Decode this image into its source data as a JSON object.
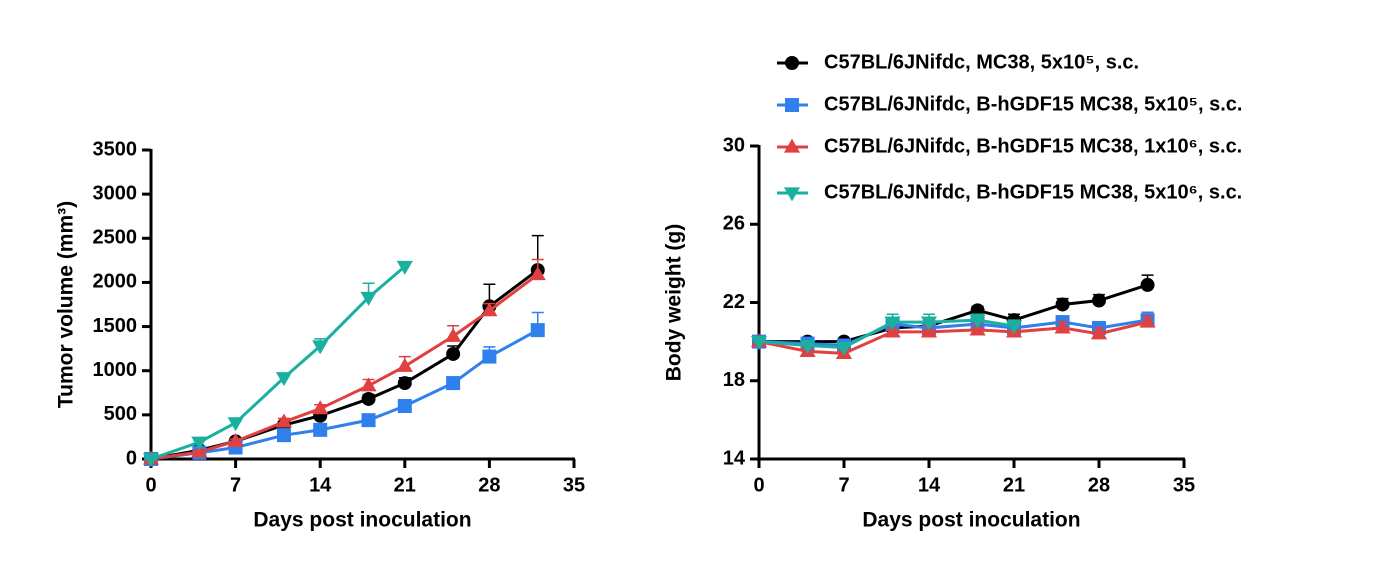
{
  "chart_data": [
    {
      "type": "line",
      "xlabel": "Days post inoculation",
      "ylabel": "Tumor volume (mm³)",
      "x": [
        0,
        4,
        7,
        11,
        14,
        18,
        21,
        25,
        28,
        32
      ],
      "xlim": [
        0,
        35
      ],
      "xticks": [
        0,
        7,
        14,
        21,
        28,
        35
      ],
      "ylim": [
        0,
        3500
      ],
      "yticks": [
        0,
        500,
        1000,
        1500,
        2000,
        2500,
        3000,
        3500
      ],
      "series": [
        {
          "color": "#000000",
          "marker": "circle",
          "values": [
            0,
            100,
            200,
            385,
            490,
            680,
            860,
            1190,
            1730,
            2140
          ],
          "errors": [
            0,
            15,
            25,
            40,
            45,
            50,
            60,
            90,
            250,
            390
          ]
        },
        {
          "color": "#2f80ed",
          "marker": "square",
          "values": [
            0,
            70,
            130,
            270,
            330,
            440,
            600,
            860,
            1160,
            1460
          ],
          "errors": [
            0,
            10,
            20,
            30,
            30,
            40,
            50,
            60,
            110,
            200
          ]
        },
        {
          "color": "#e04040",
          "marker": "triangle-up",
          "values": [
            0,
            80,
            200,
            420,
            570,
            830,
            1050,
            1390,
            1680,
            2090
          ],
          "errors": [
            0,
            15,
            25,
            40,
            45,
            70,
            110,
            120,
            80,
            170
          ]
        },
        {
          "color": "#1ab0a0",
          "marker": "triangle-down",
          "values": [
            0,
            190,
            410,
            920,
            1280,
            1830,
            2180,
            null,
            null,
            null
          ],
          "errors": [
            0,
            20,
            30,
            40,
            80,
            160,
            40,
            null,
            null,
            null
          ]
        }
      ]
    },
    {
      "type": "line",
      "xlabel": "Days post inoculation",
      "ylabel": "Body weight (g)",
      "x": [
        0,
        4,
        7,
        11,
        14,
        18,
        21,
        25,
        28,
        32
      ],
      "xlim": [
        0,
        35
      ],
      "xticks": [
        0,
        7,
        14,
        21,
        28,
        35
      ],
      "ylim": [
        14,
        30
      ],
      "yticks": [
        14,
        18,
        22,
        26,
        30
      ],
      "series": [
        {
          "name": "C57BL/6JNifdc, MC38, 5x10⁵, s.c.",
          "color": "#000000",
          "marker": "circle",
          "values": [
            20.0,
            20.0,
            20.0,
            20.7,
            20.8,
            21.6,
            21.1,
            21.9,
            22.1,
            22.9
          ],
          "errors": [
            0.1,
            0.2,
            0.1,
            0.3,
            0.3,
            0.2,
            0.3,
            0.3,
            0.3,
            0.5
          ]
        },
        {
          "name": "C57BL/6JNifdc, B-hGDF15 MC38, 5x10⁵, s.c.",
          "color": "#2f80ed",
          "marker": "square",
          "values": [
            20.0,
            19.9,
            19.8,
            20.9,
            20.7,
            20.9,
            20.7,
            21.0,
            20.7,
            21.1
          ],
          "errors": [
            0.1,
            0.2,
            0.2,
            0.3,
            0.3,
            0.3,
            0.3,
            0.3,
            0.3,
            0.4
          ]
        },
        {
          "name": "C57BL/6JNifdc, B-hGDF15 MC38, 1x10⁶, s.c.",
          "color": "#e04040",
          "marker": "triangle-up",
          "values": [
            20.0,
            19.5,
            19.4,
            20.5,
            20.5,
            20.6,
            20.5,
            20.7,
            20.4,
            21.0
          ],
          "errors": [
            0.1,
            0.2,
            0.2,
            0.2,
            0.3,
            0.3,
            0.3,
            0.3,
            0.3,
            0.3
          ]
        },
        {
          "name": "C57BL/6JNifdc, B-hGDF15 MC38, 5x10⁶, s.c.",
          "color": "#1ab0a0",
          "marker": "triangle-down",
          "values": [
            20.0,
            19.8,
            19.7,
            21.0,
            21.0,
            21.1,
            20.8,
            null,
            null,
            null
          ],
          "errors": [
            0.1,
            0.2,
            0.2,
            0.4,
            0.4,
            0.3,
            0.3,
            null,
            null,
            null
          ]
        }
      ]
    }
  ]
}
